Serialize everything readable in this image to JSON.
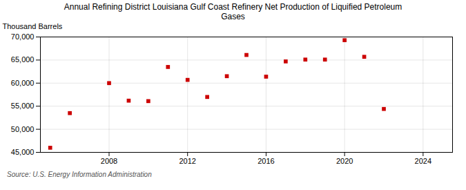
{
  "chart_data": {
    "type": "scatter",
    "title": "Annual Refining District Louisiana Gulf Coast Refinery Net Production of Liquified Petroleum\nGases",
    "ylabel": "Thousand Barrels",
    "source": "Source: U.S. Energy Information Administration",
    "x": [
      2005,
      2006,
      2008,
      2009,
      2010,
      2011,
      2012,
      2013,
      2014,
      2015,
      2016,
      2017,
      2018,
      2019,
      2020,
      2021,
      2022
    ],
    "values": [
      46000,
      53500,
      60000,
      56200,
      56100,
      63500,
      60700,
      57000,
      61500,
      66100,
      61400,
      64700,
      65100,
      65100,
      69300,
      65700,
      54400
    ],
    "color": "#cc0000",
    "marker": "square",
    "xlim": [
      2004.5,
      2025.5
    ],
    "xticks": [
      2008,
      2012,
      2016,
      2020,
      2024
    ],
    "ylim": [
      45000,
      70000
    ],
    "yticks": [
      {
        "value": 45000,
        "label": "45,000"
      },
      {
        "value": 50000,
        "label": "50,000"
      },
      {
        "value": 55000,
        "label": "55,000"
      },
      {
        "value": 60000,
        "label": "60,000"
      },
      {
        "value": 65000,
        "label": "65,000"
      },
      {
        "value": 70000,
        "label": "70,000"
      }
    ],
    "grid": true
  }
}
